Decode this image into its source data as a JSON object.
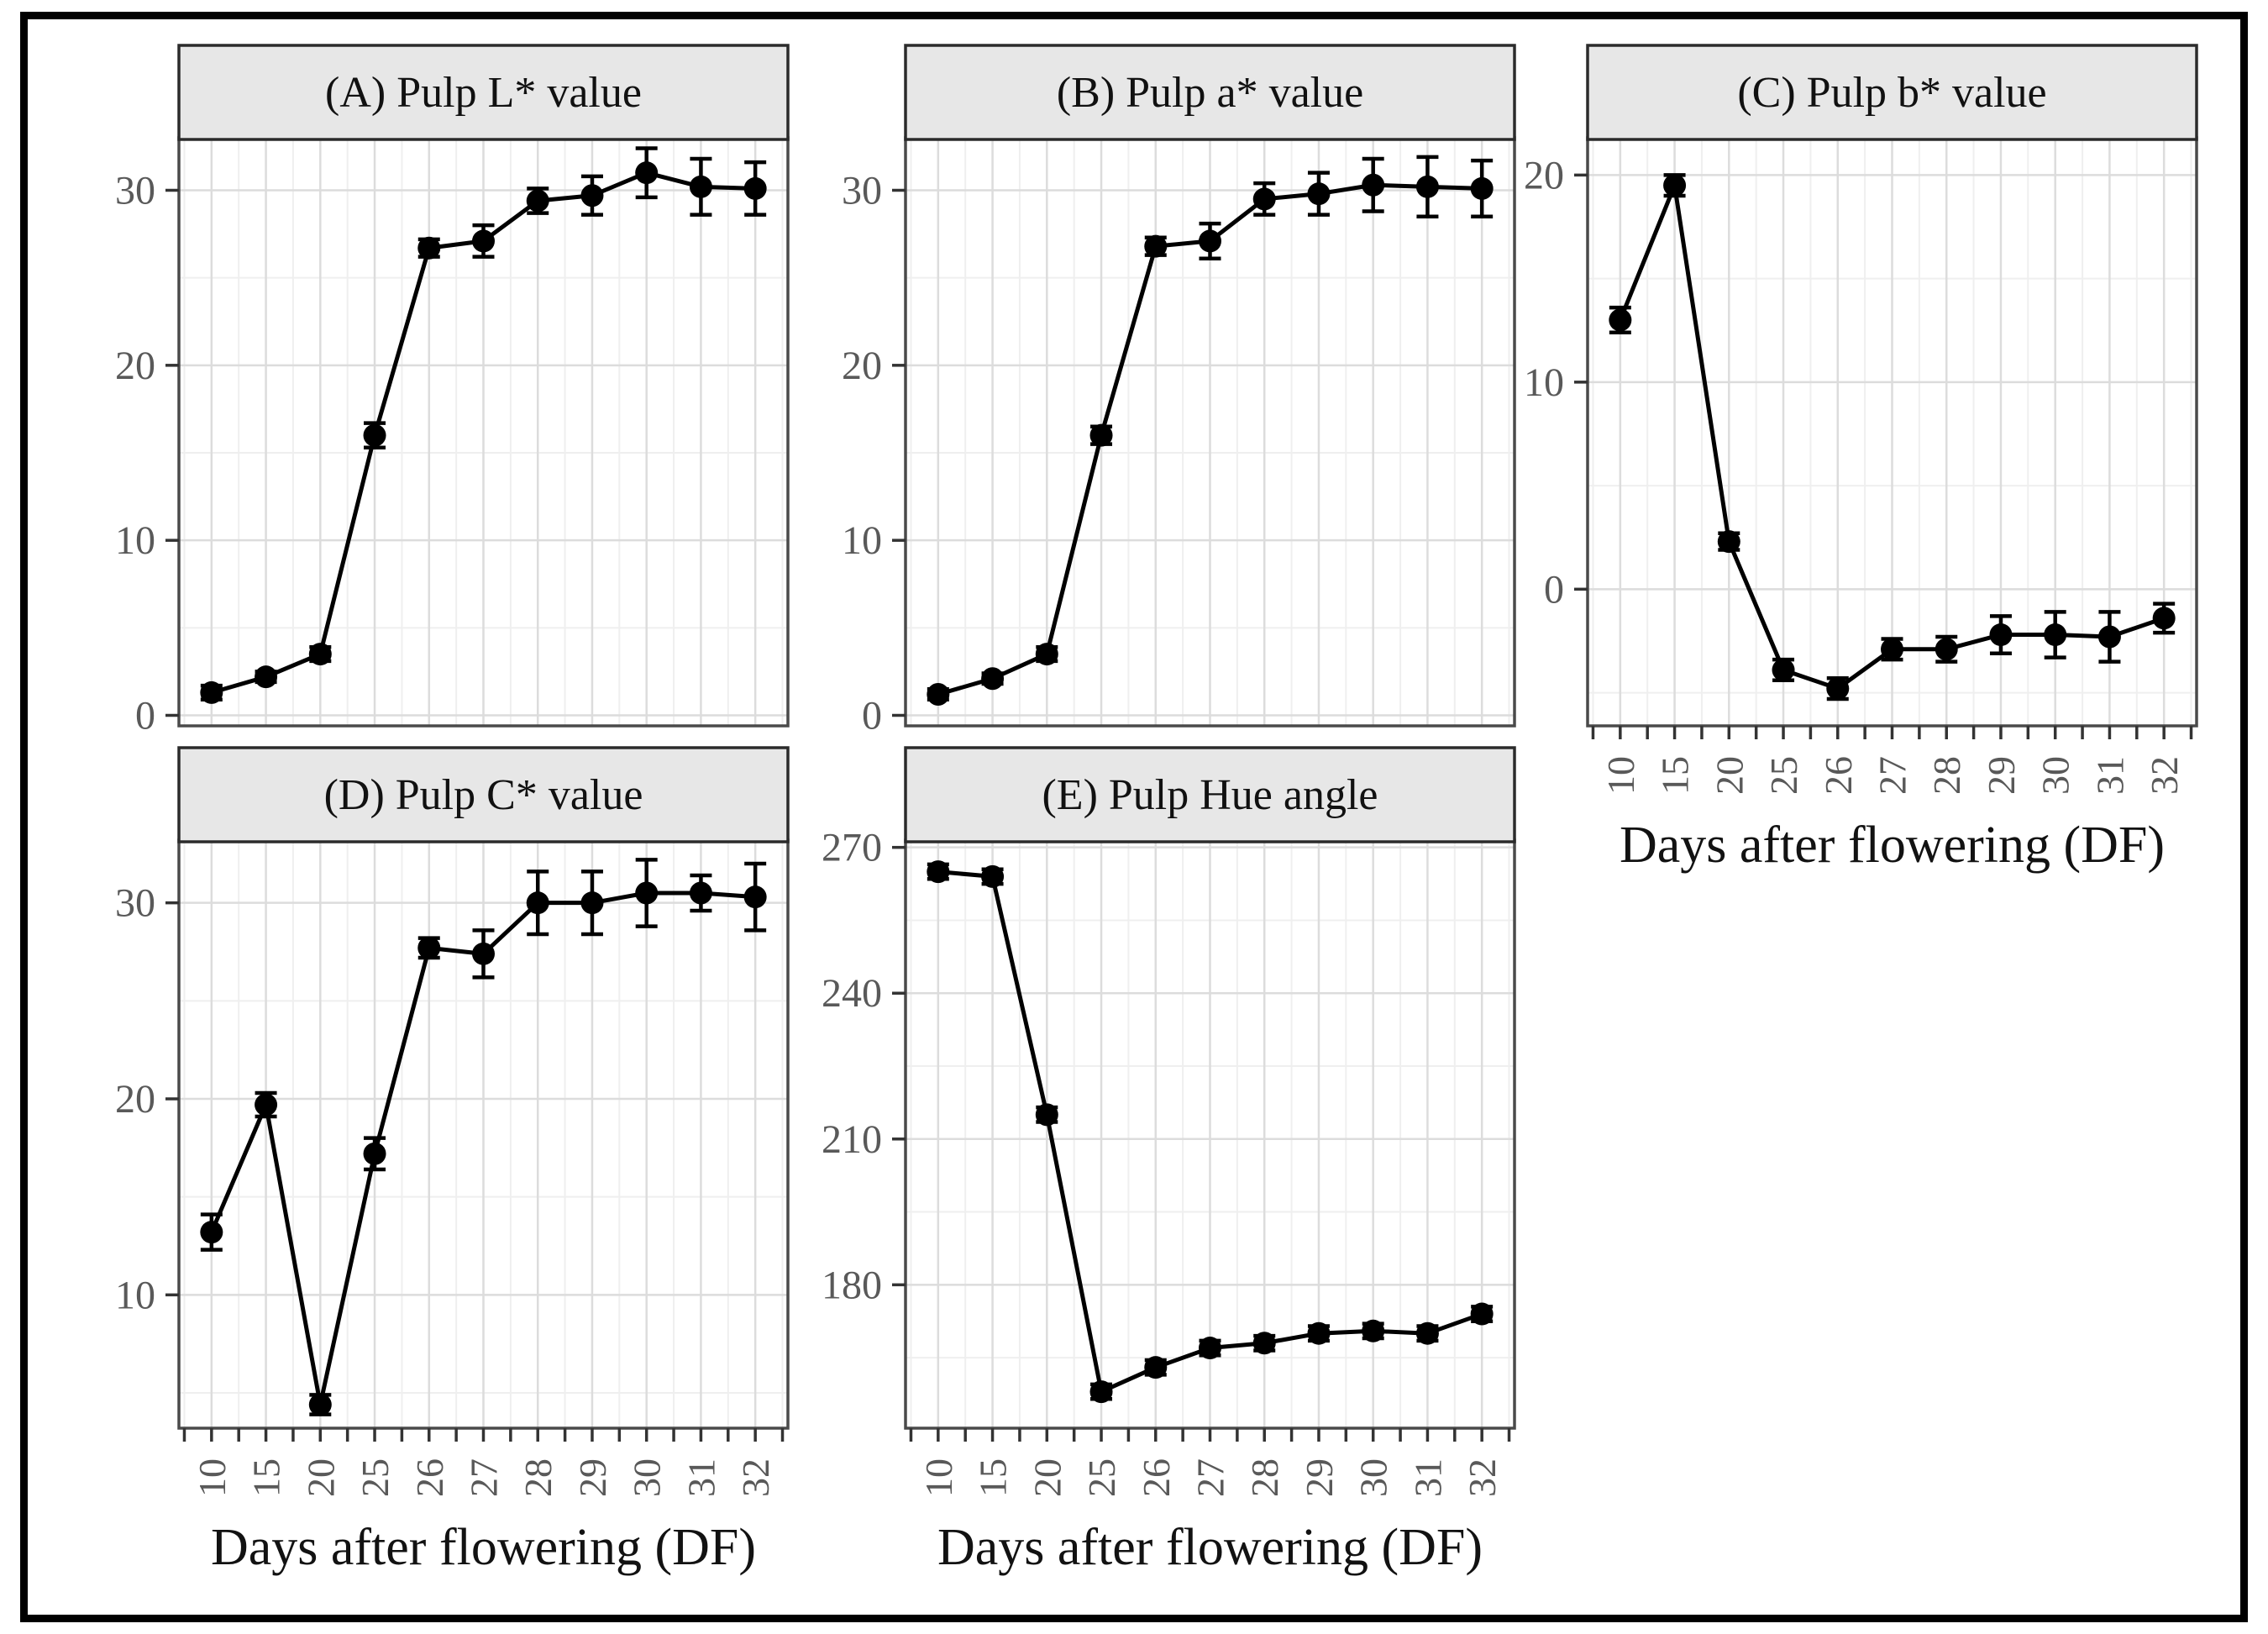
{
  "figure": {
    "background": "#ffffff",
    "border_color": "#000000",
    "x_axis_title": "Days after flowering (DF)",
    "x_tick_labels": [
      "10",
      "15",
      "20",
      "25",
      "26",
      "27",
      "28",
      "29",
      "30",
      "31",
      "32"
    ],
    "theme": {
      "strip_fill": "#e7e7e7",
      "strip_border": "#2b2b2b",
      "strip_text_color": "#111111",
      "panel_border": "#4a4a4a",
      "panel_fill": "#ffffff",
      "grid_major": "#dcdcdc",
      "grid_minor": "#efefef",
      "tick_color": "#333333",
      "tick_label_color": "#595959",
      "axis_title_color": "#121212",
      "series_color": "#000000"
    }
  },
  "chart_data": [
    {
      "id": "A",
      "type": "line",
      "title": "(A) Pulp L* value",
      "xlabel": "Days after flowering (DF)",
      "categories": [
        "10",
        "15",
        "20",
        "25",
        "26",
        "27",
        "28",
        "29",
        "30",
        "31",
        "32"
      ],
      "values": [
        1.3,
        2.2,
        3.5,
        16.0,
        26.7,
        27.1,
        29.4,
        29.7,
        31.0,
        30.2,
        30.1
      ],
      "error": [
        0.4,
        0.3,
        0.4,
        0.7,
        0.5,
        0.9,
        0.7,
        1.1,
        1.4,
        1.6,
        1.5
      ],
      "yticks": [
        0,
        10,
        20,
        30
      ],
      "ylim": [
        -0.6,
        33.0
      ],
      "grid": true,
      "show_x_labels": false,
      "show_x_title": false
    },
    {
      "id": "B",
      "type": "line",
      "title": "(B) Pulp a* value",
      "xlabel": "Days after flowering (DF)",
      "categories": [
        "10",
        "15",
        "20",
        "25",
        "26",
        "27",
        "28",
        "29",
        "30",
        "31",
        "32"
      ],
      "values": [
        1.2,
        2.1,
        3.5,
        16.0,
        26.8,
        27.1,
        29.5,
        29.8,
        30.3,
        30.2,
        30.1
      ],
      "error": [
        0.3,
        0.3,
        0.4,
        0.5,
        0.5,
        1.0,
        0.9,
        1.2,
        1.5,
        1.7,
        1.6
      ],
      "yticks": [
        0,
        10,
        20,
        30
      ],
      "ylim": [
        -0.6,
        33.0
      ],
      "grid": true,
      "show_x_labels": false,
      "show_x_title": false
    },
    {
      "id": "C",
      "type": "line",
      "title": "(C) Pulp b* value",
      "xlabel": "Days after flowering (DF)",
      "categories": [
        "10",
        "15",
        "20",
        "25",
        "26",
        "27",
        "28",
        "29",
        "30",
        "31",
        "32"
      ],
      "values": [
        13.0,
        19.5,
        2.3,
        -3.9,
        -4.8,
        -2.9,
        -2.9,
        -2.2,
        -2.2,
        -2.3,
        -1.4
      ],
      "error": [
        0.6,
        0.5,
        0.4,
        0.5,
        0.5,
        0.5,
        0.6,
        0.9,
        1.1,
        1.2,
        0.7
      ],
      "yticks": [
        0,
        10,
        20
      ],
      "ylim": [
        -6.6,
        21.8
      ],
      "grid": true,
      "show_x_labels": true,
      "show_x_title": true
    },
    {
      "id": "D",
      "type": "line",
      "title": "(D) Pulp C* value",
      "xlabel": "Days after flowering (DF)",
      "categories": [
        "10",
        "15",
        "20",
        "25",
        "26",
        "27",
        "28",
        "29",
        "30",
        "31",
        "32"
      ],
      "values": [
        13.2,
        19.7,
        4.4,
        17.2,
        27.7,
        27.4,
        30.0,
        30.0,
        30.5,
        30.5,
        30.3
      ],
      "error": [
        0.9,
        0.6,
        0.5,
        0.8,
        0.5,
        1.2,
        1.6,
        1.6,
        1.7,
        0.9,
        1.7
      ],
      "yticks": [
        10,
        20,
        30
      ],
      "ylim": [
        3.2,
        33.2
      ],
      "grid": true,
      "show_x_labels": true,
      "show_x_title": true
    },
    {
      "id": "E",
      "type": "line",
      "title": "(E) Pulp Hue angle",
      "xlabel": "Days after flowering (DF)",
      "categories": [
        "10",
        "15",
        "20",
        "25",
        "26",
        "27",
        "28",
        "29",
        "30",
        "31",
        "32"
      ],
      "values": [
        265.0,
        264.0,
        215.0,
        158.0,
        163.0,
        167.0,
        168.0,
        170.0,
        170.5,
        170.0,
        174.0
      ],
      "error": [
        1.5,
        1.5,
        1.5,
        1.5,
        1.5,
        1.5,
        1.5,
        1.5,
        1.5,
        1.5,
        1.5
      ],
      "yticks": [
        180,
        210,
        240,
        270
      ],
      "ylim": [
        150.5,
        271.5
      ],
      "grid": true,
      "show_x_labels": true,
      "show_x_title": true
    }
  ]
}
